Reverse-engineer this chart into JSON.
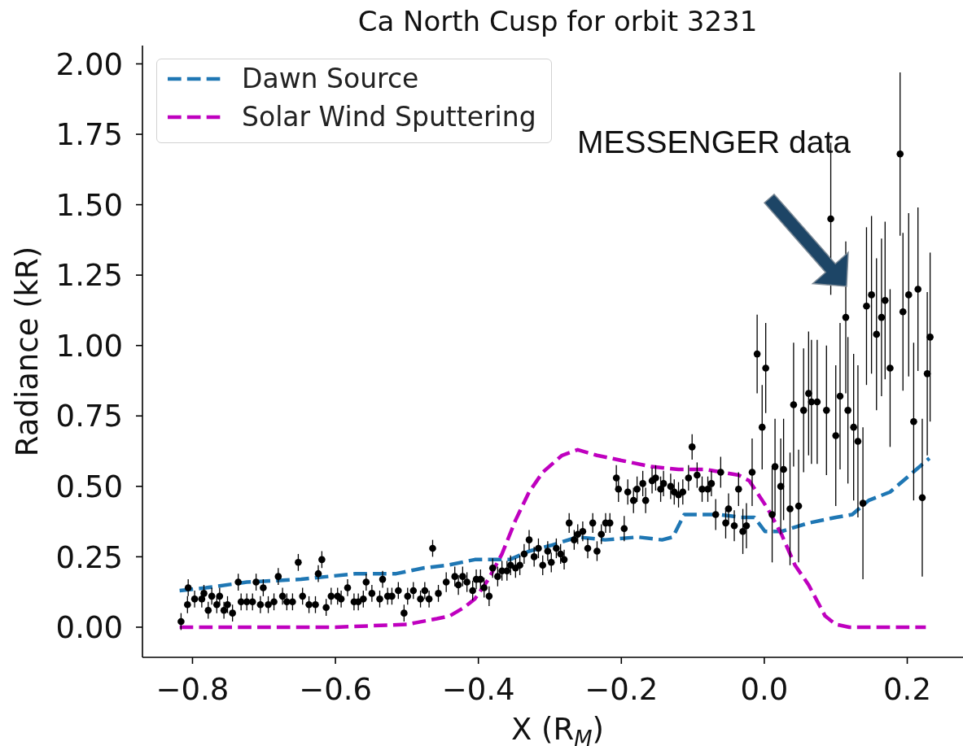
{
  "chart_data": {
    "type": "line",
    "title": "Ca North Cusp for orbit 3231",
    "xlabel": "X (R$_{M}$)",
    "ylabel": "Radiance (kR)",
    "xlim": [
      -0.87,
      0.278
    ],
    "xticks": [
      {
        "value": -0.8,
        "label": "−0.8"
      },
      {
        "value": -0.6,
        "label": "−0.6"
      },
      {
        "value": -0.4,
        "label": "−0.4"
      },
      {
        "value": -0.2,
        "label": "−0.2"
      },
      {
        "value": 0,
        "label": "0.0"
      },
      0.2
    ],
    "ylim": [
      -0.107,
      2.065
    ],
    "yticks": [
      {
        "value": 0,
        "label": "0.00"
      },
      0.25,
      {
        "value": 0.5,
        "label": "0.50"
      },
      0.75,
      {
        "value": 1,
        "label": "1.00"
      },
      1.25,
      {
        "value": 1.5,
        "label": "1.50"
      },
      1.75,
      {
        "value": 2,
        "label": "2.00"
      }
    ],
    "legend": "top left",
    "line_style": "dashed",
    "annotations": [
      "MESSENGER data"
    ],
    "series": [
      {
        "name": "Dawn Source",
        "color": "#1f77b4",
        "x": [
          -0.818,
          -0.781,
          -0.724,
          -0.648,
          -0.572,
          -0.515,
          -0.477,
          -0.443,
          -0.405,
          -0.356,
          -0.329,
          -0.299,
          -0.261,
          -0.223,
          -0.177,
          -0.143,
          -0.128,
          -0.112,
          -0.101,
          -0.063,
          -0.033,
          -0.014,
          0.001,
          0.024,
          0.062,
          0.1,
          0.123,
          0.146,
          0.176,
          0.199,
          0.231
        ],
        "values": [
          0.13,
          0.14,
          0.16,
          0.17,
          0.19,
          0.19,
          0.21,
          0.22,
          0.24,
          0.24,
          0.27,
          0.29,
          0.32,
          0.31,
          0.32,
          0.31,
          0.32,
          0.4,
          0.4,
          0.4,
          0.39,
          0.39,
          0.34,
          0.34,
          0.37,
          0.39,
          0.4,
          0.45,
          0.48,
          0.53,
          0.6
        ]
      },
      {
        "name": "Solar Wind Sputtering",
        "color": "#bf00bf",
        "x": [
          -0.818,
          -0.6,
          -0.5,
          -0.458,
          -0.44,
          -0.42,
          -0.405,
          -0.386,
          -0.367,
          -0.348,
          -0.329,
          -0.31,
          -0.283,
          -0.261,
          -0.234,
          -0.196,
          -0.158,
          -0.12,
          -0.082,
          -0.036,
          -0.021,
          0.005,
          0.024,
          0.043,
          0.062,
          0.085,
          0.1,
          0.119,
          0.226
        ],
        "values": [
          0,
          0,
          0.01,
          0.03,
          0.04,
          0.07,
          0.1,
          0.17,
          0.26,
          0.38,
          0.48,
          0.55,
          0.61,
          0.63,
          0.61,
          0.59,
          0.57,
          0.56,
          0.56,
          0.54,
          0.52,
          0.42,
          0.33,
          0.22,
          0.15,
          0.04,
          0.01,
          0,
          0
        ]
      },
      {
        "type": "scatter",
        "color": "#000000",
        "marker": "circle",
        "x": [
          -0.816,
          -0.807,
          -0.806,
          -0.797,
          -0.787,
          -0.784,
          -0.778,
          -0.773,
          -0.766,
          -0.762,
          -0.756,
          -0.751,
          -0.744,
          -0.736,
          -0.732,
          -0.724,
          -0.716,
          -0.711,
          -0.705,
          -0.701,
          -0.694,
          -0.686,
          -0.68,
          -0.674,
          -0.668,
          -0.66,
          -0.652,
          -0.646,
          -0.637,
          -0.628,
          -0.624,
          -0.619,
          -0.613,
          -0.606,
          -0.597,
          -0.592,
          -0.583,
          -0.574,
          -0.568,
          -0.561,
          -0.557,
          -0.549,
          -0.538,
          -0.534,
          -0.527,
          -0.521,
          -0.512,
          -0.504,
          -0.499,
          -0.491,
          -0.481,
          -0.475,
          -0.469,
          -0.464,
          -0.456,
          -0.445,
          -0.433,
          -0.428,
          -0.422,
          -0.416,
          -0.408,
          -0.403,
          -0.397,
          -0.392,
          -0.385,
          -0.38,
          -0.373,
          -0.367,
          -0.36,
          -0.355,
          -0.348,
          -0.342,
          -0.336,
          -0.329,
          -0.322,
          -0.316,
          -0.31,
          -0.303,
          -0.298,
          -0.291,
          -0.285,
          -0.28,
          -0.273,
          -0.266,
          -0.261,
          -0.254,
          -0.247,
          -0.24,
          -0.234,
          -0.228,
          -0.222,
          -0.216,
          -0.207,
          -0.204,
          -0.196,
          -0.191,
          -0.183,
          -0.178,
          -0.17,
          -0.166,
          -0.157,
          -0.152,
          -0.145,
          -0.141,
          -0.131,
          -0.126,
          -0.12,
          -0.114,
          -0.106,
          -0.101,
          -0.094,
          -0.087,
          -0.079,
          -0.074,
          -0.068,
          -0.061,
          -0.054,
          -0.05,
          -0.042,
          -0.036,
          -0.03,
          -0.025,
          -0.017,
          -0.01,
          -0.003,
          0.002,
          0.011,
          0.015,
          0.023,
          0.027,
          0.036,
          0.041,
          0.048,
          0.055,
          0.062,
          0.066,
          0.074,
          0.087,
          0.093,
          0.1,
          0.106,
          0.114,
          0.117,
          0.125,
          0.131,
          0.138,
          0.143,
          0.15,
          0.157,
          0.164,
          0.169,
          0.176,
          0.19,
          0.194,
          0.202,
          0.209,
          0.215,
          0.221,
          0.228,
          0.232
        ],
        "values": [
          0.02,
          0.08,
          0.14,
          0.1,
          0.1,
          0.12,
          0.06,
          0.11,
          0.08,
          0.11,
          0.06,
          0.08,
          0.05,
          0.16,
          0.09,
          0.09,
          0.09,
          0.16,
          0.08,
          0.14,
          0.08,
          0.09,
          0.18,
          0.11,
          0.09,
          0.09,
          0.23,
          0.11,
          0.08,
          0.08,
          0.19,
          0.24,
          0.07,
          0.11,
          0.11,
          0.1,
          0.14,
          0.09,
          0.09,
          0.1,
          0.16,
          0.12,
          0.1,
          0.17,
          0.11,
          0.11,
          0.13,
          0.05,
          0.11,
          0.13,
          0.1,
          0.13,
          0.1,
          0.28,
          0.12,
          0.16,
          0.18,
          0.15,
          0.18,
          0.16,
          0.13,
          0.17,
          0.17,
          0.14,
          0.11,
          0.21,
          0.18,
          0.2,
          0.2,
          0.22,
          0.21,
          0.22,
          0.26,
          0.31,
          0.25,
          0.28,
          0.22,
          0.27,
          0.23,
          0.28,
          0.26,
          0.24,
          0.37,
          0.31,
          0.33,
          0.34,
          0.28,
          0.37,
          0.27,
          0.33,
          0.37,
          0.37,
          0.53,
          0.49,
          0.35,
          0.48,
          0.45,
          0.49,
          0.51,
          0.45,
          0.52,
          0.53,
          0.49,
          0.51,
          0.5,
          0.48,
          0.47,
          0.48,
          0.53,
          0.64,
          0.54,
          0.49,
          0.49,
          0.51,
          0.4,
          0.55,
          0.37,
          0.42,
          0.36,
          0.49,
          0.34,
          0.36,
          0.55,
          0.97,
          0.71,
          0.92,
          0.4,
          0.57,
          0.5,
          0.56,
          0.42,
          0.79,
          0.43,
          0.77,
          0.83,
          0.8,
          0.8,
          0.77,
          1.45,
          0.68,
          0.82,
          1.1,
          0.77,
          0.71,
          0.66,
          0.44,
          1.14,
          1.18,
          1.04,
          1.1,
          1.16,
          0.92,
          1.68,
          1.12,
          1.18,
          0.73,
          1.2,
          0.46,
          0.9,
          1.03
        ],
        "errors": [
          0.03,
          0.03,
          0.03,
          0.03,
          0.03,
          0.03,
          0.03,
          0.03,
          0.03,
          0.03,
          0.03,
          0.03,
          0.03,
          0.03,
          0.03,
          0.03,
          0.03,
          0.03,
          0.03,
          0.03,
          0.03,
          0.03,
          0.03,
          0.03,
          0.03,
          0.03,
          0.03,
          0.03,
          0.03,
          0.03,
          0.03,
          0.03,
          0.03,
          0.03,
          0.03,
          0.03,
          0.03,
          0.03,
          0.03,
          0.03,
          0.03,
          0.03,
          0.03,
          0.03,
          0.03,
          0.03,
          0.03,
          0.03,
          0.03,
          0.03,
          0.03,
          0.03,
          0.03,
          0.03,
          0.03,
          0.035,
          0.035,
          0.035,
          0.035,
          0.035,
          0.035,
          0.035,
          0.035,
          0.035,
          0.035,
          0.035,
          0.035,
          0.035,
          0.035,
          0.035,
          0.035,
          0.035,
          0.035,
          0.035,
          0.035,
          0.035,
          0.035,
          0.035,
          0.035,
          0.035,
          0.035,
          0.035,
          0.035,
          0.035,
          0.035,
          0.035,
          0.035,
          0.035,
          0.035,
          0.035,
          0.035,
          0.035,
          0.045,
          0.045,
          0.045,
          0.045,
          0.045,
          0.045,
          0.045,
          0.045,
          0.045,
          0.045,
          0.045,
          0.045,
          0.045,
          0.045,
          0.045,
          0.045,
          0.045,
          0.045,
          0.045,
          0.045,
          0.045,
          0.045,
          0.055,
          0.055,
          0.055,
          0.055,
          0.055,
          0.06,
          0.08,
          0.08,
          0.12,
          0.14,
          0.15,
          0.16,
          0.17,
          0.17,
          0.17,
          0.18,
          0.2,
          0.22,
          0.2,
          0.22,
          0.22,
          0.22,
          0.22,
          0.23,
          0.27,
          0.25,
          0.26,
          0.27,
          0.26,
          0.26,
          0.27,
          0.27,
          0.28,
          0.28,
          0.27,
          0.28,
          0.28,
          0.28,
          0.29,
          0.28,
          0.29,
          0.28,
          0.29,
          0.28,
          0.29,
          0.3
        ]
      }
    ]
  }
}
